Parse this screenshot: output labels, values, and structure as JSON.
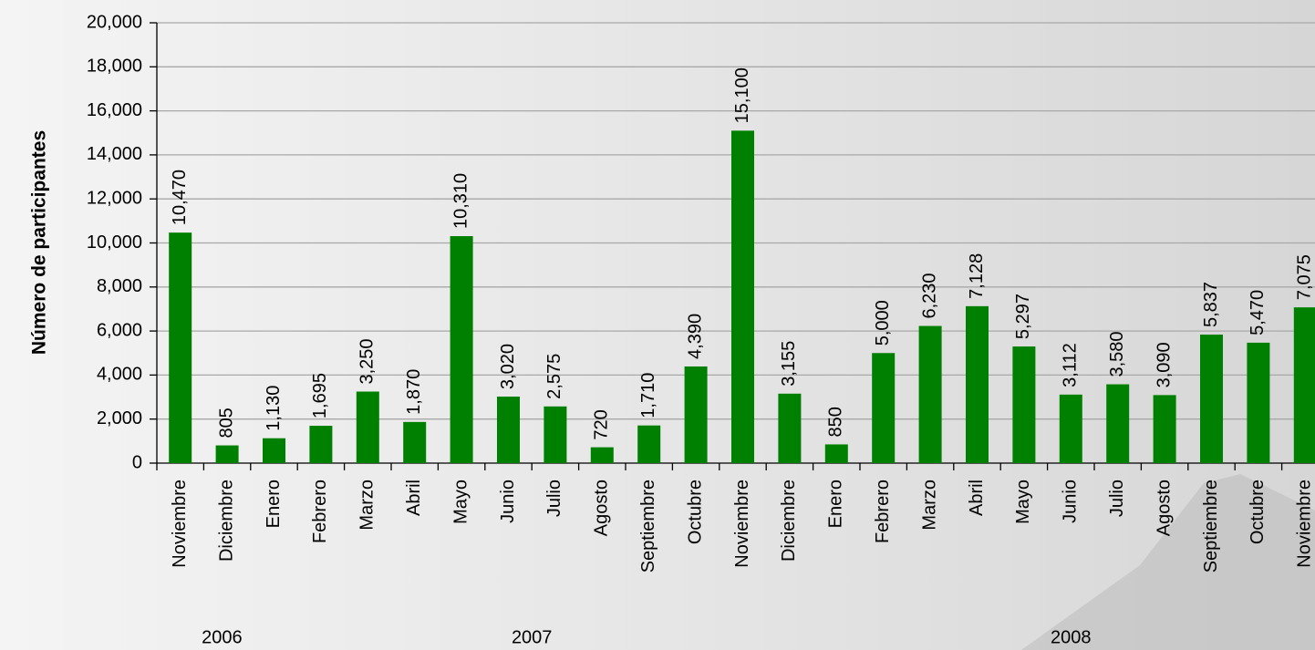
{
  "chart_data": {
    "type": "bar",
    "y_axis_label": "Número de participantes",
    "categories": [
      "Noviembre",
      "Diciembre",
      "Enero",
      "Febrero",
      "Marzo",
      "Abril",
      "Mayo",
      "Junio",
      "Julio",
      "Agosto",
      "Septiembre",
      "Octubre",
      "Noviembre",
      "Diciembre",
      "Enero",
      "Febrero",
      "Marzo",
      "Abril",
      "Mayo",
      "Junio",
      "Julio",
      "Agosto",
      "Septiembre",
      "Octubre",
      "Noviembre"
    ],
    "category_groups": [
      {
        "label": "2006",
        "size": 2
      },
      {
        "label": "2007",
        "size": 12
      },
      {
        "label": "2008",
        "size": 11
      }
    ],
    "values": [
      10470,
      805,
      1130,
      1695,
      3250,
      1870,
      10310,
      3020,
      2575,
      720,
      1710,
      4390,
      15100,
      3155,
      850,
      5000,
      6230,
      7128,
      5297,
      3112,
      3580,
      3090,
      5837,
      5470,
      7075
    ],
    "value_labels": [
      "10,470",
      "805",
      "1,130",
      "1,695",
      "3,250",
      "1,870",
      "10,310",
      "3,020",
      "2,575",
      "720",
      "1,710",
      "4,390",
      "15,100",
      "3,155",
      "850",
      "5,000",
      "6,230",
      "7,128",
      "5,297",
      "3,112",
      "3,580",
      "3,090",
      "5,837",
      "5,470",
      "7,075"
    ],
    "color": "#008000",
    "ylim": [
      0,
      20000
    ],
    "yticks": [
      0,
      {
        "value": 2000,
        "label": "2,000"
      },
      {
        "value": 4000,
        "label": "4,000"
      },
      {
        "value": 6000,
        "label": "6,000"
      },
      {
        "value": 8000,
        "label": "8,000"
      },
      {
        "value": 10000,
        "label": "10,000"
      },
      {
        "value": 12000,
        "label": "12,000"
      },
      {
        "value": 14000,
        "label": "14,000"
      },
      {
        "value": 16000,
        "label": "16,000"
      },
      {
        "value": 18000,
        "label": "18,000"
      },
      {
        "value": 20000,
        "label": "20,000"
      }
    ],
    "grid": true
  }
}
